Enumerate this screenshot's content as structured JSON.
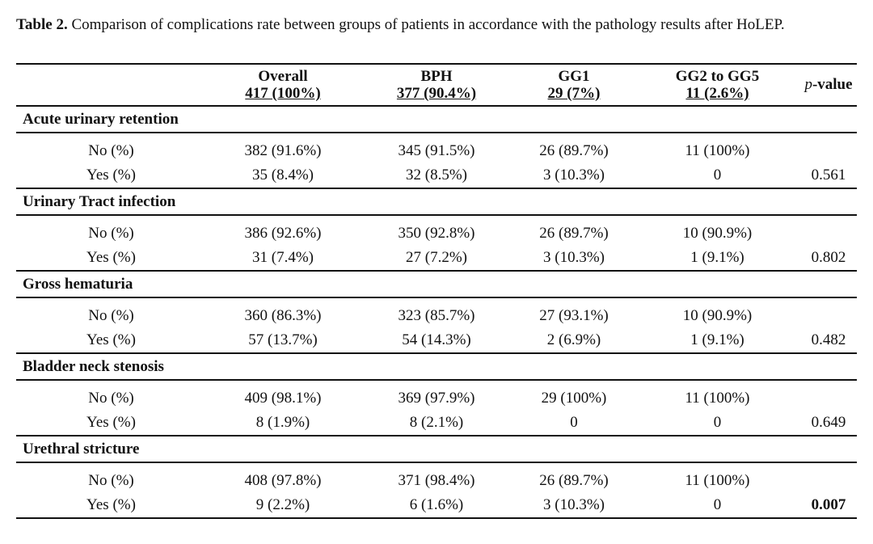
{
  "caption": {
    "label": "Table 2.",
    "text": " Comparison of complications rate between groups of patients in accordance with the pathology results after HoLEP."
  },
  "columns": [
    {
      "name": "Overall",
      "n": "417 (100%)"
    },
    {
      "name": "BPH",
      "n": "377 (90.4%)"
    },
    {
      "name": "GG1",
      "n": "29 (7%)"
    },
    {
      "name": "GG2 to GG5",
      "n": "11 (2.6%)"
    }
  ],
  "pvalue_header": {
    "italic": "p",
    "rest": "-value"
  },
  "sections": [
    {
      "title": "Acute urinary retention",
      "no": {
        "label": "No (%)",
        "values": [
          "382 (91.6%)",
          "345 (91.5%)",
          "26 (89.7%)",
          "11 (100%)"
        ]
      },
      "yes": {
        "label": "Yes (%)",
        "values": [
          "35 (8.4%)",
          "32 (8.5%)",
          "3 (10.3%)",
          "0"
        ]
      },
      "pvalue": "0.561",
      "significant": false
    },
    {
      "title": "Urinary Tract infection",
      "no": {
        "label": "No (%)",
        "values": [
          "386 (92.6%)",
          "350 (92.8%)",
          "26 (89.7%)",
          "10 (90.9%)"
        ]
      },
      "yes": {
        "label": "Yes (%)",
        "values": [
          "31 (7.4%)",
          "27 (7.2%)",
          "3 (10.3%)",
          "1 (9.1%)"
        ]
      },
      "pvalue": "0.802",
      "significant": false
    },
    {
      "title": "Gross hematuria",
      "no": {
        "label": "No (%)",
        "values": [
          "360 (86.3%)",
          "323 (85.7%)",
          "27 (93.1%)",
          "10 (90.9%)"
        ]
      },
      "yes": {
        "label": "Yes (%)",
        "values": [
          "57 (13.7%)",
          "54 (14.3%)",
          "2 (6.9%)",
          "1 (9.1%)"
        ]
      },
      "pvalue": "0.482",
      "significant": false
    },
    {
      "title": "Bladder neck stenosis",
      "no": {
        "label": "No (%)",
        "values": [
          "409 (98.1%)",
          "369 (97.9%)",
          "29 (100%)",
          "11 (100%)"
        ]
      },
      "yes": {
        "label": "Yes (%)",
        "values": [
          "8 (1.9%)",
          "8 (2.1%)",
          "0",
          "0"
        ]
      },
      "pvalue": "0.649",
      "significant": false
    },
    {
      "title": "Urethral stricture",
      "no": {
        "label": "No (%)",
        "values": [
          "408 (97.8%)",
          "371 (98.4%)",
          "26 (89.7%)",
          "11 (100%)"
        ]
      },
      "yes": {
        "label": "Yes (%)",
        "values": [
          "9 (2.2%)",
          "6 (1.6%)",
          "3 (10.3%)",
          "0"
        ]
      },
      "pvalue": "0.007",
      "significant": true
    }
  ]
}
